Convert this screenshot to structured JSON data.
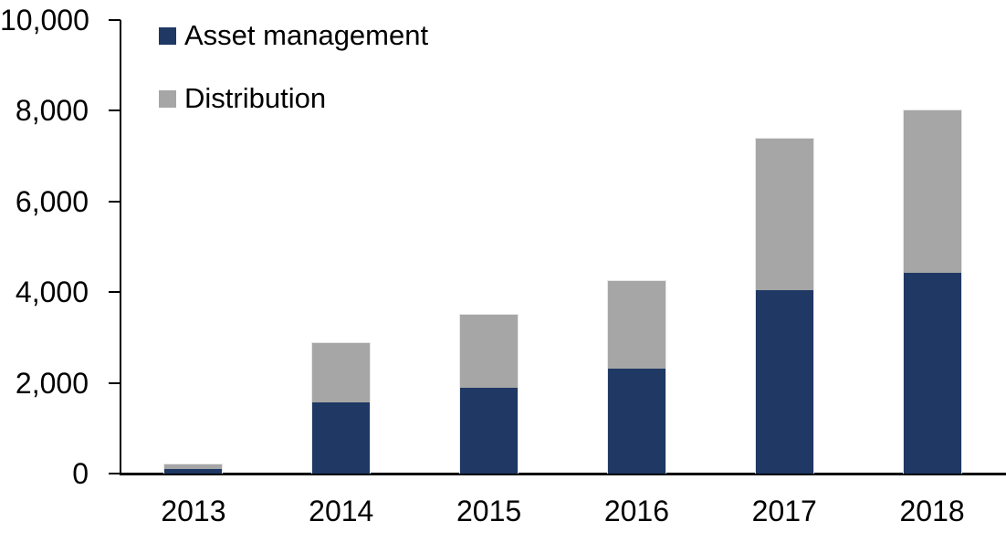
{
  "chart_data": {
    "type": "bar",
    "stacked": true,
    "title": "",
    "xlabel": "",
    "ylabel": "",
    "categories": [
      "2013",
      "2014",
      "2015",
      "2016",
      "2017",
      "2018"
    ],
    "series": [
      {
        "name": "Asset management",
        "color": "#1F3864",
        "values": [
          100,
          1570,
          1890,
          2310,
          4040,
          4420
        ]
      },
      {
        "name": "Distribution",
        "color": "#A6A6A6",
        "values": [
          100,
          1300,
          1610,
          1940,
          3340,
          3580
        ]
      }
    ],
    "ylim": [
      0,
      10000
    ],
    "y_ticks": [
      {
        "value": 0,
        "label": "0"
      },
      {
        "value": 2000,
        "label": "2,000"
      },
      {
        "value": 4000,
        "label": "4,000"
      },
      {
        "value": 6000,
        "label": "6,000"
      },
      {
        "value": 8000,
        "label": "8,000"
      },
      {
        "value": 10000,
        "label": "10,000"
      }
    ],
    "grid": false,
    "legend_position": "top-left"
  },
  "colors": {
    "axis": "#000000",
    "text": "#000000",
    "background": "#FFFFFF"
  }
}
